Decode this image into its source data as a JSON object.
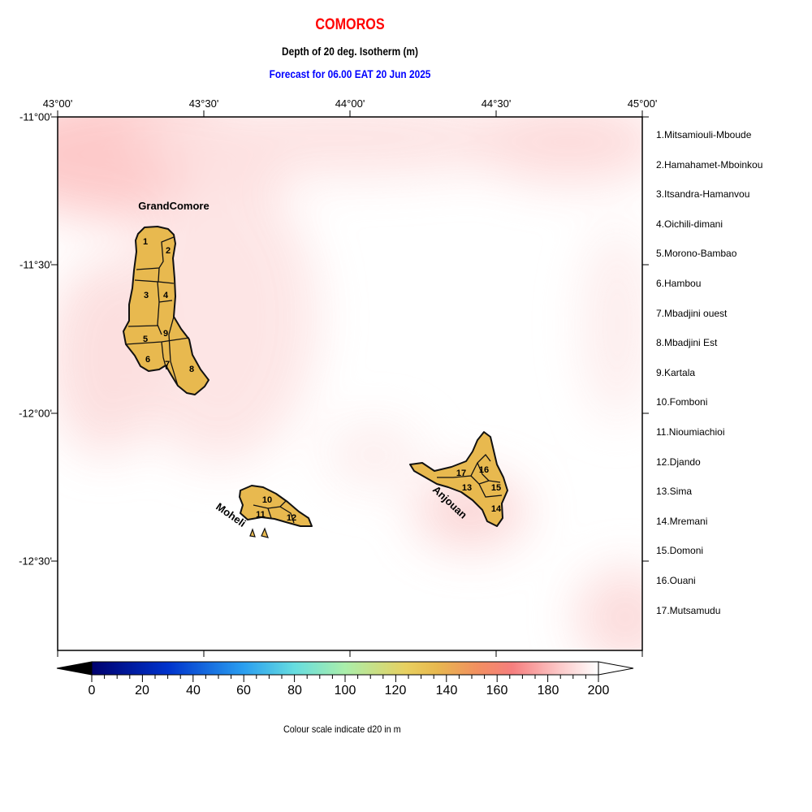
{
  "header": {
    "title": "COMOROS",
    "subtitle": "Depth of 20 deg. Isotherm (m)",
    "forecast": "Forecast for  06.00 EAT 20 Jun 2025",
    "title_color": "#ff0000",
    "forecast_color": "#0000ff"
  },
  "axes": {
    "lon_ticks": [
      "43°00'",
      "43°30'",
      "44°00'",
      "44°30'",
      "45°00'"
    ],
    "lat_ticks": [
      "-11°00'",
      "-11°30'",
      "-12°00'",
      "-12°30'"
    ],
    "lon_range": [
      43.0,
      45.0
    ],
    "lat_range": [
      -12.8,
      -11.0
    ]
  },
  "map": {
    "field_range_m": [
      150,
      200
    ],
    "island_fill": "#e8b94f",
    "labels": {
      "grand_comore": "GrandComore",
      "moheli": "Moheli",
      "anjouan": "Anjouan"
    },
    "region_numbers": [
      "1",
      "2",
      "3",
      "4",
      "5",
      "6",
      "7",
      "8",
      "9",
      "10",
      "11",
      "12",
      "13",
      "14",
      "15",
      "16",
      "17"
    ]
  },
  "legend": [
    "1.Mitsamiouli-Mboude",
    "2.Hamahamet-Mboinkou",
    "3.Itsandra-Hamanvou",
    "4.Oichili-dimani",
    "5.Morono-Bambao",
    "6.Hambou",
    "7.Mbadjini ouest",
    "8.Mbadjini Est",
    "9.Kartala",
    "10.Fomboni",
    "11.Nioumiachioi",
    "12.Djando",
    "13.Sima",
    "14.Mremani",
    "15.Domoni",
    "16.Ouani",
    "17.Mutsamudu"
  ],
  "colorbar": {
    "labels": [
      "0",
      "20",
      "40",
      "60",
      "80",
      "100",
      "120",
      "140",
      "160",
      "180",
      "200"
    ],
    "range": [
      0,
      200
    ],
    "caption": "Colour scale indicate d20 in m",
    "stops": [
      "#000000",
      "#00006e",
      "#0033cc",
      "#2299ee",
      "#55ccee",
      "#88eebb",
      "#ccee99",
      "#eecc66",
      "#e8b94f",
      "#f0a860",
      "#f58a78",
      "#fbb0b0",
      "#fde6e6",
      "#ffffff"
    ]
  }
}
